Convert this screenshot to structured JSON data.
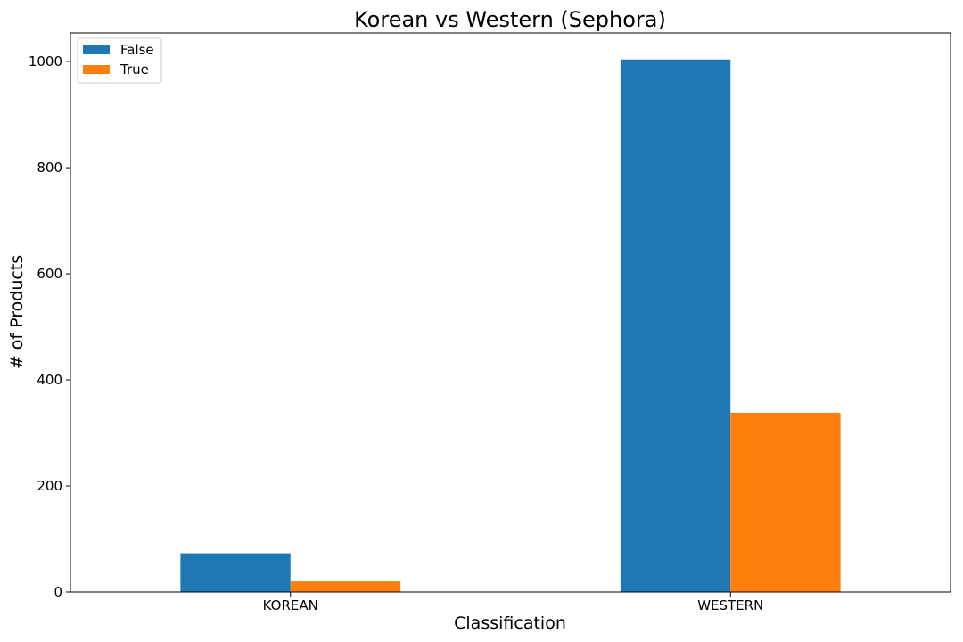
{
  "chart_data": {
    "type": "bar",
    "title": "Korean vs Western (Sephora)",
    "xlabel": "Classification",
    "ylabel": "# of Products",
    "categories": [
      "KOREAN",
      "WESTERN"
    ],
    "series": [
      {
        "name": "False",
        "values": [
          73,
          1004
        ],
        "color": "#1f77b4"
      },
      {
        "name": "True",
        "values": [
          20,
          338
        ],
        "color": "#ff7f0e"
      }
    ],
    "ylim": [
      0,
      1054
    ],
    "yticks": [
      0,
      200,
      400,
      600,
      800,
      1000
    ],
    "grid": false,
    "legend": "top-left"
  }
}
